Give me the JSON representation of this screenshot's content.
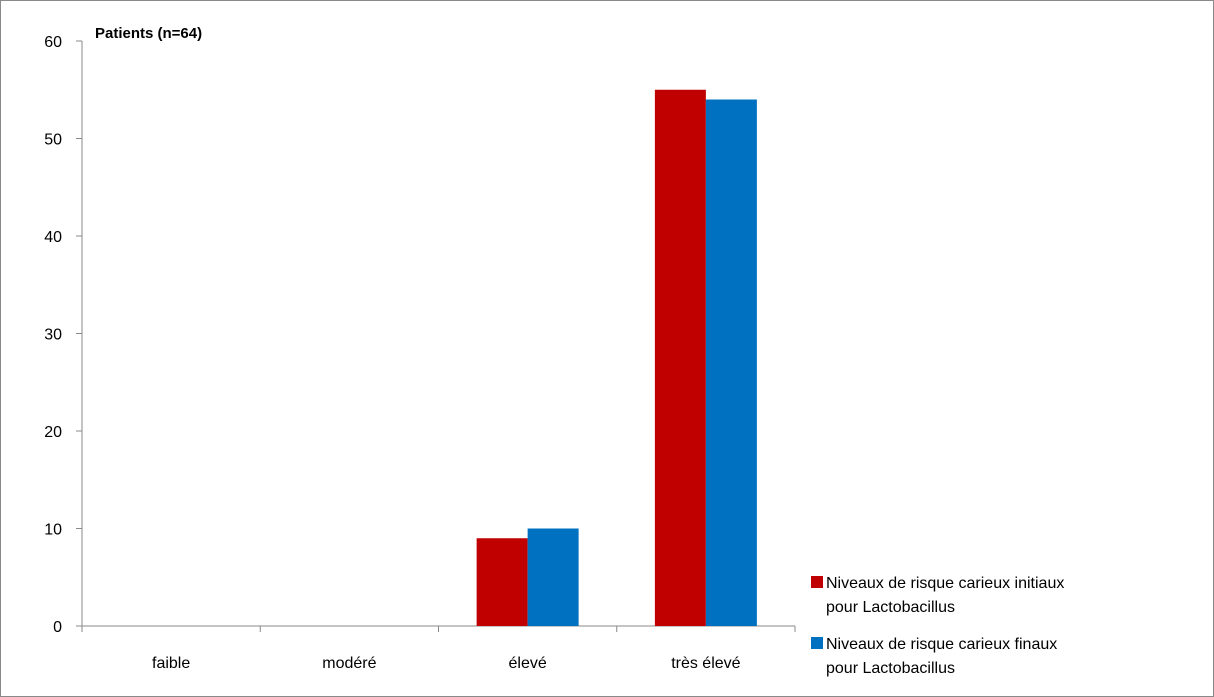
{
  "chart_data": {
    "type": "bar",
    "ylabel": "Patients (n=64)",
    "categories": [
      "faible",
      "modéré",
      "élevé",
      "très élevé"
    ],
    "yticks": [
      "0",
      "10",
      "20",
      "30",
      "40",
      "50",
      "60"
    ],
    "ylim": [
      0,
      60
    ],
    "grid": false,
    "legend_position": "bottom-right",
    "series": [
      {
        "name": "Niveaux de risque carieux initiaux pour Lactobacillus",
        "name_lines": [
          "Niveaux de risque carieux initiaux",
          "pour Lactobacillus"
        ],
        "color": "#c00000",
        "values": [
          0,
          0,
          9,
          55
        ]
      },
      {
        "name": "Niveaux de risque carieux finaux pour Lactobacillus",
        "name_lines": [
          "Niveaux de risque carieux finaux",
          "pour Lactobacillus"
        ],
        "color": "#0070c0",
        "values": [
          0,
          0,
          10,
          54
        ]
      }
    ]
  }
}
